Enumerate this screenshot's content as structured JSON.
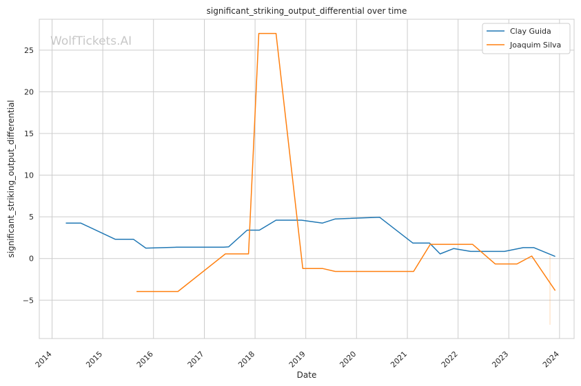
{
  "watermark": "WolfTickets.AI",
  "chart_data": {
    "type": "line",
    "title": "significant_striking_output_differential over time",
    "xlabel": "Date",
    "ylabel": "significant_striking_output_differential",
    "x_ticks": [
      "2014",
      "2015",
      "2016",
      "2017",
      "2018",
      "2019",
      "2020",
      "2021",
      "2022",
      "2023",
      "2024"
    ],
    "y_ticks": [
      -5,
      0,
      5,
      10,
      15,
      20,
      25
    ],
    "xlim": [
      "2013-10-01",
      "2024-04-15"
    ],
    "ylim": [
      -9.6,
      28.7
    ],
    "grid": true,
    "legend_position": "top-right",
    "series": [
      {
        "name": "Clay Guida",
        "color": "#1f77b4",
        "points": [
          [
            "2014-04-10",
            4.25
          ],
          [
            "2014-07-26",
            4.25
          ],
          [
            "2015-04-01",
            2.3
          ],
          [
            "2015-08-10",
            2.3
          ],
          [
            "2015-11-07",
            1.25
          ],
          [
            "2016-06-15",
            1.35
          ],
          [
            "2017-05-20",
            1.35
          ],
          [
            "2017-06-25",
            1.4
          ],
          [
            "2017-11-05",
            3.4
          ],
          [
            "2018-02-01",
            3.4
          ],
          [
            "2018-06-01",
            4.6
          ],
          [
            "2018-12-01",
            4.6
          ],
          [
            "2019-05-01",
            4.25
          ],
          [
            "2019-08-01",
            4.75
          ],
          [
            "2020-06-15",
            4.95
          ],
          [
            "2021-02-10",
            1.85
          ],
          [
            "2021-06-10",
            1.85
          ],
          [
            "2021-08-25",
            0.55
          ],
          [
            "2021-12-01",
            1.2
          ],
          [
            "2022-04-01",
            0.85
          ],
          [
            "2022-12-01",
            0.85
          ],
          [
            "2023-04-15",
            1.3
          ],
          [
            "2023-07-01",
            1.3
          ],
          [
            "2023-12-01",
            0.25
          ]
        ]
      },
      {
        "name": "Joaquim Silva",
        "color": "#ff7f0e",
        "points": [
          [
            "2015-09-01",
            -3.95
          ],
          [
            "2016-06-25",
            -3.95
          ],
          [
            "2017-06-01",
            0.55
          ],
          [
            "2017-11-15",
            0.55
          ],
          [
            "2018-01-28",
            27.0
          ],
          [
            "2018-06-01",
            27.0
          ],
          [
            "2018-12-10",
            -1.2
          ],
          [
            "2019-05-01",
            -1.2
          ],
          [
            "2019-08-01",
            -1.55
          ],
          [
            "2021-02-15",
            -1.55
          ],
          [
            "2021-06-15",
            1.7
          ],
          [
            "2022-04-15",
            1.7
          ],
          [
            "2022-09-25",
            -0.65
          ],
          [
            "2023-03-01",
            -0.65
          ],
          [
            "2023-06-15",
            0.3
          ],
          [
            "2023-12-01",
            -3.85
          ]
        ]
      }
    ]
  }
}
